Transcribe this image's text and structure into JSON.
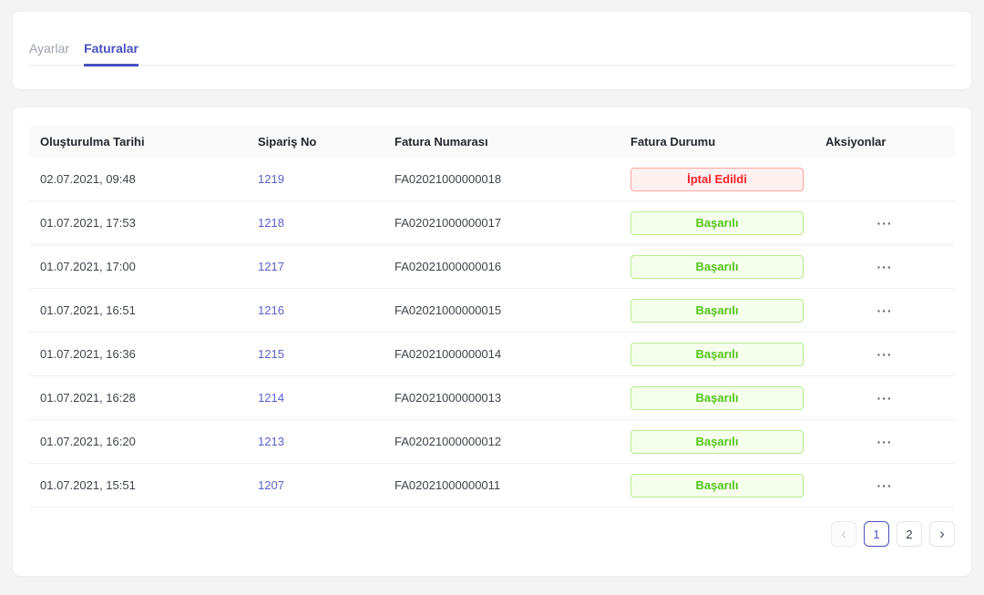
{
  "tabs": [
    {
      "label": "Ayarlar",
      "active": false
    },
    {
      "label": "Faturalar",
      "active": true
    }
  ],
  "table": {
    "columns": [
      "Oluşturulma Tarihi",
      "Sipariş No",
      "Fatura Numarası",
      "Fatura Durumu",
      "Aksiyonlar"
    ],
    "rows": [
      {
        "created": "02.07.2021, 09:48",
        "order_no": "1219",
        "invoice_no": "FA02021000000018",
        "status": "İptal Edildi",
        "status_type": "cancelled",
        "actions": ""
      },
      {
        "created": "01.07.2021, 17:53",
        "order_no": "1218",
        "invoice_no": "FA02021000000017",
        "status": "Başarılı",
        "status_type": "success",
        "actions": "···"
      },
      {
        "created": "01.07.2021, 17:00",
        "order_no": "1217",
        "invoice_no": "FA02021000000016",
        "status": "Başarılı",
        "status_type": "success",
        "actions": "···"
      },
      {
        "created": "01.07.2021, 16:51",
        "order_no": "1216",
        "invoice_no": "FA02021000000015",
        "status": "Başarılı",
        "status_type": "success",
        "actions": "···"
      },
      {
        "created": "01.07.2021, 16:36",
        "order_no": "1215",
        "invoice_no": "FA02021000000014",
        "status": "Başarılı",
        "status_type": "success",
        "actions": "···"
      },
      {
        "created": "01.07.2021, 16:28",
        "order_no": "1214",
        "invoice_no": "FA02021000000013",
        "status": "Başarılı",
        "status_type": "success",
        "actions": "···"
      },
      {
        "created": "01.07.2021, 16:20",
        "order_no": "1213",
        "invoice_no": "FA02021000000012",
        "status": "Başarılı",
        "status_type": "success",
        "actions": "···"
      },
      {
        "created": "01.07.2021, 15:51",
        "order_no": "1207",
        "invoice_no": "FA02021000000011",
        "status": "Başarılı",
        "status_type": "success",
        "actions": "···"
      }
    ]
  },
  "pagination": {
    "prev_icon": "‹",
    "next_icon": "›",
    "pages": [
      {
        "label": "1",
        "active": true
      },
      {
        "label": "2",
        "active": false
      }
    ]
  },
  "colors": {
    "primary": "#4a51c0",
    "link": "#5b61cb",
    "success_text": "#52c41a",
    "success_border": "#b7eb8f",
    "success_bg": "#f6ffed",
    "cancelled_text": "#f5222d",
    "cancelled_border": "#ffa39e",
    "cancelled_bg": "#fff1f0"
  }
}
